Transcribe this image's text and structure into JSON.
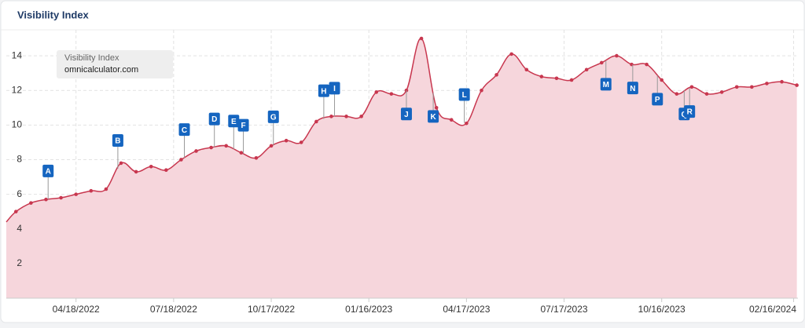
{
  "chart_data": {
    "type": "area",
    "title": "Visibility Index",
    "subtitle": "omnicalculator.com",
    "x": [
      "02/12/2022",
      "02/21/2022",
      "03/07/2022",
      "03/21/2022",
      "04/04/2022",
      "04/18/2022",
      "05/02/2022",
      "05/16/2022",
      "05/30/2022",
      "06/13/2022",
      "06/27/2022",
      "07/11/2022",
      "07/25/2022",
      "08/08/2022",
      "08/22/2022",
      "09/05/2022",
      "09/19/2022",
      "10/03/2022",
      "10/17/2022",
      "10/31/2022",
      "11/14/2022",
      "11/28/2022",
      "12/12/2022",
      "12/26/2022",
      "01/09/2023",
      "01/23/2023",
      "02/06/2023",
      "02/20/2023",
      "03/06/2023",
      "03/20/2023",
      "04/03/2023",
      "04/17/2023",
      "05/01/2023",
      "05/15/2023",
      "05/29/2023",
      "06/12/2023",
      "06/26/2023",
      "07/10/2023",
      "07/24/2023",
      "08/07/2023",
      "08/21/2023",
      "09/04/2023",
      "09/18/2023",
      "10/02/2023",
      "10/16/2023",
      "10/30/2023",
      "11/13/2023",
      "11/27/2023",
      "12/11/2023",
      "12/25/2023",
      "01/08/2024",
      "01/22/2024",
      "02/05/2024",
      "02/19/2024"
    ],
    "series": [
      {
        "name": "Visibility Index",
        "color": "#c8374f",
        "fill": "#f6d6dc",
        "values": [
          4.4,
          5.0,
          5.5,
          5.7,
          5.8,
          6.0,
          6.2,
          6.3,
          7.8,
          7.3,
          7.6,
          7.4,
          8.0,
          8.5,
          8.7,
          8.8,
          8.4,
          8.1,
          8.8,
          9.1,
          9.0,
          10.2,
          10.5,
          10.5,
          10.5,
          11.9,
          11.8,
          12.0,
          15.0,
          11.0,
          10.3,
          10.1,
          12.0,
          12.9,
          14.1,
          13.2,
          12.8,
          12.7,
          12.6,
          13.2,
          13.6,
          14.0,
          13.5,
          13.5,
          12.6,
          11.8,
          12.2,
          11.8,
          11.9,
          12.2,
          12.2,
          12.4,
          12.5,
          12.3
        ]
      }
    ],
    "xlim": [
      "02/12/2022",
      "02/20/2024"
    ],
    "xticks": [
      "04/18/2022",
      "07/18/2022",
      "10/17/2022",
      "01/16/2023",
      "04/17/2023",
      "07/17/2023",
      "10/16/2023",
      "02/16/2024"
    ],
    "ylim": [
      0,
      15.5
    ],
    "yticks": [
      2,
      4,
      6,
      8,
      10,
      12,
      14
    ],
    "grid": true,
    "events": [
      {
        "label": "A",
        "x": "03/23/2022"
      },
      {
        "label": "B",
        "x": "05/27/2022"
      },
      {
        "label": "C",
        "x": "07/28/2022"
      },
      {
        "label": "D",
        "x": "08/25/2022"
      },
      {
        "label": "E",
        "x": "09/12/2022"
      },
      {
        "label": "F",
        "x": "09/21/2022"
      },
      {
        "label": "G",
        "x": "10/19/2022"
      },
      {
        "label": "H",
        "x": "12/05/2022"
      },
      {
        "label": "I",
        "x": "12/15/2022"
      },
      {
        "label": "J",
        "x": "02/20/2023"
      },
      {
        "label": "K",
        "x": "03/17/2023"
      },
      {
        "label": "L",
        "x": "04/15/2023"
      },
      {
        "label": "M",
        "x": "08/25/2023"
      },
      {
        "label": "N",
        "x": "09/19/2023"
      },
      {
        "label": "P",
        "x": "10/12/2023"
      },
      {
        "label": "Q",
        "x": "11/06/2023"
      },
      {
        "label": "R",
        "x": "11/11/2023"
      }
    ]
  }
}
